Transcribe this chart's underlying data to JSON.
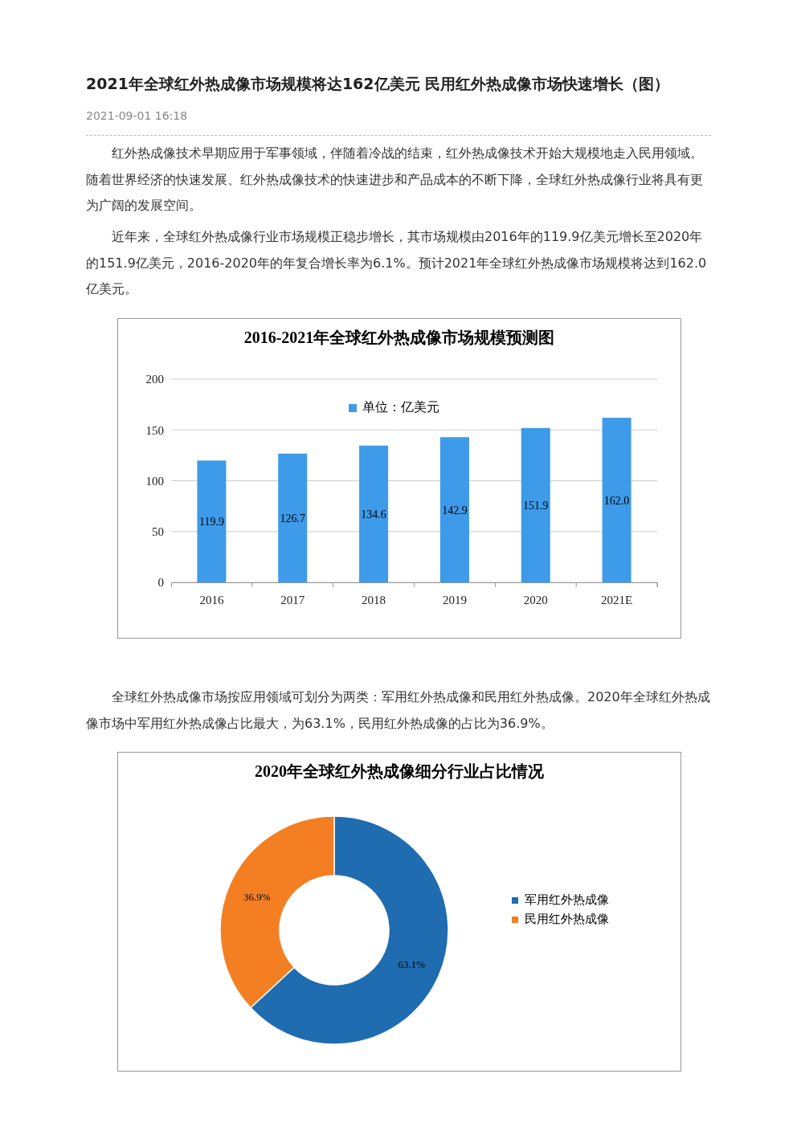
{
  "chart_data": [
    {
      "type": "bar",
      "title": "2016-2021年全球红外热成像市场规模预测图",
      "annotations": [
        "2021年全球红外热成像市场规模将达162亿美元 民用红外热成像市场快速增长（图）",
        "2021-09-01 16:18",
        "红外热成像技术早期应用于军事领域，伴随着冷战的结束，红外热成像技术开始大规模地走入民用领域。随着世界经济的快速发展、红外热成像技术的快速进步和产品成本的不断下降，全球红外热成像行业将具有更为广阔的发展空间。",
        "近年来，全球红外热成像行业市场规模正稳步增长，其市场规模由2016年的119.9亿美元增长至2020年的151.9亿美元，2016-2020年的年复合增长率为6.1%。预计2021年全球红外热成像市场规模将达到162.0亿美元。"
      ],
      "categories": [
        "2016",
        "2017",
        "2018",
        "2019",
        "2020",
        "2021E"
      ],
      "series": [
        {
          "name": "单位：亿美元",
          "color": "#3d9be9",
          "values": [
            119.9,
            126.7,
            134.6,
            142.9,
            151.9,
            162.0
          ],
          "value_labels": [
            "119.9",
            "126.7",
            "134.6",
            "142.9",
            "151.9",
            "162.0"
          ]
        }
      ],
      "ylim": [
        0,
        200
      ],
      "yticks": [
        0,
        50,
        100,
        150,
        200
      ],
      "grid": "y",
      "legend": "top"
    },
    {
      "type": "donut",
      "title": "2020年全球红外热成像细分行业占比情况",
      "annotations": [
        "全球红外热成像市场按应用领域可划分为两类：军用红外热成像和民用红外热成像。2020年全球红外热成像市场中军用红外热成像占比最大，为63.1%，民用红外热成像的占比为36.9%。"
      ],
      "categories": [
        "军用红外热成像",
        "民用红外热成像"
      ],
      "values": [
        63.1,
        36.9
      ],
      "colors": [
        "#1f6cb0",
        "#f47f22"
      ],
      "value_labels": [
        "63.1%",
        "36.9%"
      ],
      "legend": "right"
    }
  ]
}
